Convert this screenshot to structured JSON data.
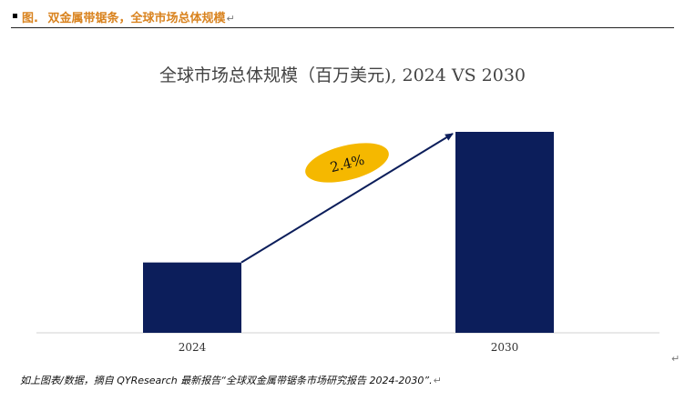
{
  "figure_header": {
    "label": "图.",
    "text": "双金属带锯条，全球市场总体规模",
    "para_mark": "↵"
  },
  "chart_data": {
    "type": "bar",
    "title": "全球市场总体规模（百万美元), 2024 VS 2030",
    "categories": [
      "2024",
      "2030"
    ],
    "values": [
      35,
      100
    ],
    "ylim": [
      0,
      100
    ],
    "xlabel": "",
    "ylabel": "",
    "grid": false,
    "bar_color": "#0c1e5b",
    "arrow_color": "#0c1e5b",
    "annotation": {
      "text": "2.4%",
      "color": "#f5b800"
    }
  },
  "footer": {
    "text": "如上图表/数据，摘自 QYResearch 最新报告“全球双金属带锯条市场研究报告 2024-2030”.",
    "para_mark": "↵"
  },
  "side_mark": "↵"
}
